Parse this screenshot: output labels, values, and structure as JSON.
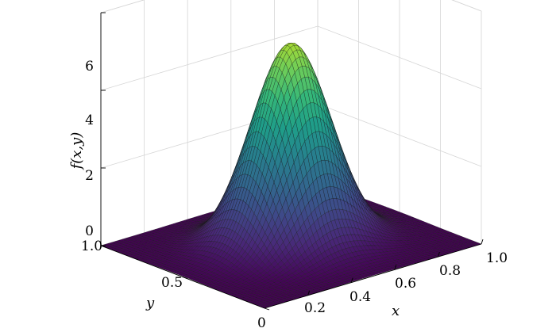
{
  "chart_data": {
    "type": "surface",
    "title": "",
    "zlabel": "f(x,y)",
    "xlabel": "x",
    "ylabel": "y",
    "xlim": [
      0,
      1
    ],
    "ylim": [
      0,
      1
    ],
    "zlim": [
      0,
      6
    ],
    "z_ticks": [
      {
        "v": 0,
        "label": "0"
      },
      {
        "v": 2,
        "label": "2"
      },
      {
        "v": 4,
        "label": "4"
      },
      {
        "v": 6,
        "label": "6"
      }
    ],
    "x_ticks": [
      {
        "v": 0.2,
        "label": "0.2"
      },
      {
        "v": 0.4,
        "label": "0.4"
      },
      {
        "v": 0.6,
        "label": "0.6"
      },
      {
        "v": 0.8,
        "label": "0.8"
      },
      {
        "v": 1.0,
        "label": "1.0"
      }
    ],
    "y_ticks": [
      {
        "v": 0,
        "label": "0"
      },
      {
        "v": 0.5,
        "label": "0.5"
      },
      {
        "v": 1.0,
        "label": "1.0"
      }
    ],
    "surface": {
      "function": "gaussian",
      "peak": 5.2,
      "center_x": 0.5,
      "center_y": 0.5,
      "sigma": 0.15,
      "mesh_points": 61
    },
    "colormap": "viridis",
    "grid": true
  }
}
